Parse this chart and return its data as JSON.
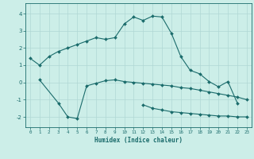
{
  "xlabel": "Humidex (Indice chaleur)",
  "background_color": "#cceee8",
  "grid_color": "#b0d8d4",
  "line_color": "#1a6b6b",
  "xlim": [
    -0.5,
    23.5
  ],
  "ylim": [
    -2.6,
    4.6
  ],
  "yticks": [
    -2,
    -1,
    0,
    1,
    2,
    3,
    4
  ],
  "xticks": [
    0,
    1,
    2,
    3,
    4,
    5,
    6,
    7,
    8,
    9,
    10,
    11,
    12,
    13,
    14,
    15,
    16,
    17,
    18,
    19,
    20,
    21,
    22,
    23
  ],
  "line1_x": [
    0,
    1,
    2,
    3,
    4,
    5,
    6,
    7,
    8,
    9,
    10,
    11,
    12,
    13,
    14,
    15,
    16,
    17,
    18,
    19,
    20,
    21,
    22
  ],
  "line1_y": [
    1.4,
    1.0,
    1.5,
    1.8,
    2.0,
    2.2,
    2.4,
    2.6,
    2.5,
    2.6,
    3.4,
    3.8,
    3.6,
    3.85,
    3.8,
    2.85,
    1.5,
    0.7,
    0.5,
    0.05,
    -0.25,
    0.05,
    -1.2
  ],
  "line2_x": [
    1,
    3,
    4,
    5,
    6,
    7,
    8,
    9,
    10,
    11,
    12,
    13,
    14,
    15,
    16,
    17,
    18,
    19,
    20,
    21,
    22,
    23
  ],
  "line2_y": [
    0.15,
    -1.2,
    -2.0,
    -2.1,
    -0.2,
    -0.05,
    0.1,
    0.15,
    0.05,
    0.0,
    -0.05,
    -0.1,
    -0.15,
    -0.2,
    -0.3,
    -0.35,
    -0.45,
    -0.55,
    -0.65,
    -0.75,
    -0.85,
    -1.0
  ],
  "line3_x": [
    12,
    13,
    14,
    15,
    16,
    17,
    18,
    19,
    20,
    21,
    22,
    23
  ],
  "line3_y": [
    -1.3,
    -1.5,
    -1.6,
    -1.7,
    -1.75,
    -1.8,
    -1.85,
    -1.9,
    -1.95,
    -1.95,
    -2.0,
    -2.0
  ]
}
